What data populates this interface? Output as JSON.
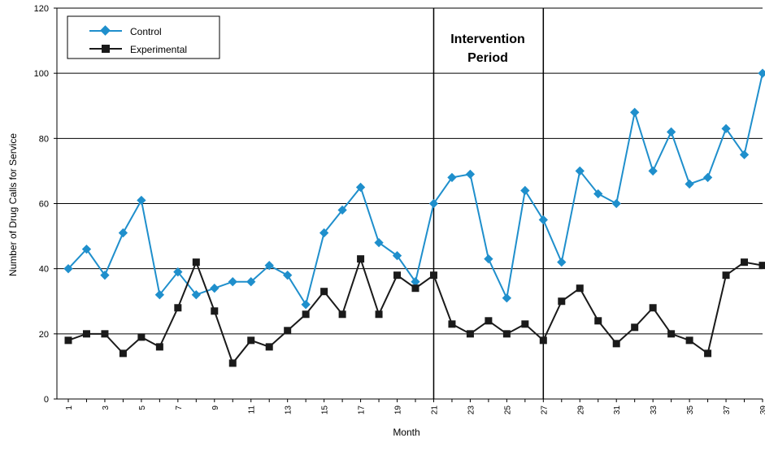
{
  "chart_data": {
    "type": "line",
    "title": "",
    "xlabel": "Month",
    "ylabel": "Number of Drug Calls for Service",
    "ylim": [
      0,
      120
    ],
    "yticks": [
      "0",
      "20",
      "40",
      "60",
      "80",
      "100",
      "120"
    ],
    "xlim": [
      1,
      39
    ],
    "xtick_labels": [
      "1",
      "3",
      "5",
      "7",
      "9",
      "11",
      "13",
      "15",
      "17",
      "19",
      "21",
      "23",
      "25",
      "27",
      "29",
      "31",
      "33",
      "35",
      "37",
      "39"
    ],
    "grid": "horizontal",
    "legend_position": "top-left",
    "annotation": {
      "line1": "Intervention",
      "line2": "Period"
    },
    "intervention_months": [
      21,
      27
    ],
    "x": [
      1,
      2,
      3,
      4,
      5,
      6,
      7,
      8,
      9,
      10,
      11,
      12,
      13,
      14,
      15,
      16,
      17,
      18,
      19,
      20,
      21,
      22,
      23,
      24,
      25,
      26,
      27,
      28,
      29,
      30,
      31,
      32,
      33,
      34,
      35,
      36,
      37,
      38,
      39
    ],
    "series": [
      {
        "name": "Control",
        "color": "#1f8fcc",
        "marker": "diamond",
        "values": [
          40,
          46,
          38,
          51,
          61,
          32,
          39,
          32,
          34,
          36,
          36,
          41,
          38,
          29,
          51,
          58,
          65,
          48,
          44,
          36,
          60,
          68,
          69,
          43,
          31,
          64,
          55,
          42,
          70,
          63,
          60,
          88,
          70,
          82,
          66,
          68,
          83,
          75,
          100
        ]
      },
      {
        "name": "Experimental",
        "color": "#1a1a1a",
        "marker": "square",
        "values": [
          18,
          20,
          20,
          14,
          19,
          16,
          28,
          42,
          27,
          11,
          18,
          16,
          21,
          26,
          33,
          26,
          43,
          26,
          38,
          34,
          38,
          23,
          20,
          24,
          20,
          23,
          18,
          30,
          34,
          24,
          17,
          22,
          28,
          20,
          18,
          14,
          38,
          42,
          41
        ]
      }
    ]
  }
}
